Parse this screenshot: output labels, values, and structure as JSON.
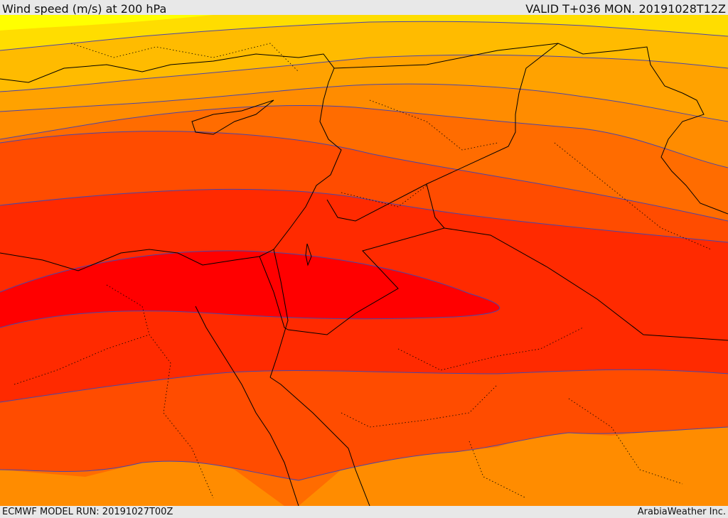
{
  "header": {
    "title": "Wind speed (m/s) at 200 hPa",
    "valid": "VALID T+036 MON. 20191028T12Z"
  },
  "footer": {
    "model_run": "ECMWF MODEL RUN: 20191027T00Z",
    "credit": "ArabiaWeather Inc."
  },
  "map": {
    "variable": "wind speed at 200 hPa",
    "units": "m/s",
    "colors": {
      "yellow": "#ffff00",
      "gold": "#ffdd00",
      "amber": "#ffbb00",
      "light_orange": "#ffa200",
      "orange": "#ff8c00",
      "dark_orange": "#ff6c00",
      "orange_red": "#ff4c00",
      "red_orange": "#ff2a00",
      "red": "#ff0000",
      "contour_line": "#4b45a8",
      "border_line": "#000000"
    }
  }
}
